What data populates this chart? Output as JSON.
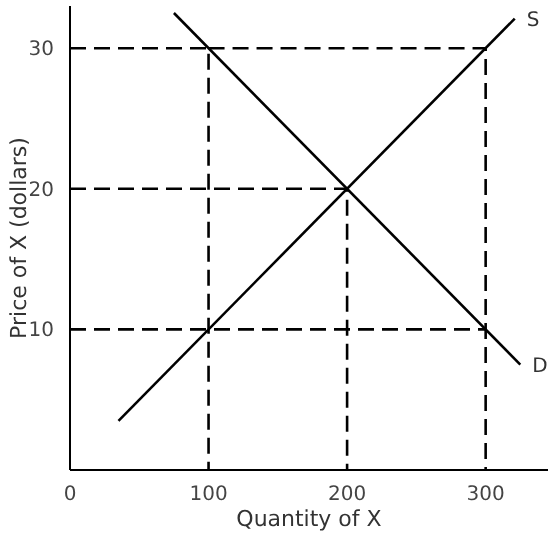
{
  "chart_data": {
    "type": "line",
    "xlabel": "Quantity of X",
    "ylabel": "Price of X (dollars)",
    "xlim": [
      0,
      345
    ],
    "ylim": [
      0,
      33
    ],
    "xticks": [
      0,
      100,
      200,
      300
    ],
    "yticks": [
      10,
      20,
      30
    ],
    "grid": false,
    "legend": false,
    "marker": "none",
    "series": [
      {
        "name": "S",
        "color": "#000000",
        "x": [
          35,
          321
        ],
        "values": [
          3.5,
          32.1
        ]
      },
      {
        "name": "D",
        "color": "#000000",
        "x": [
          75,
          325
        ],
        "values": [
          32.5,
          7.5
        ]
      },
      {
        "color": "#000000",
        "line_style": "dashed",
        "x": [
          0,
          100,
          100
        ],
        "values": [
          30,
          30,
          0
        ]
      },
      {
        "color": "#000000",
        "line_style": "dashed",
        "x": [
          100,
          300,
          300
        ],
        "values": [
          30,
          30,
          0
        ]
      },
      {
        "color": "#000000",
        "line_style": "dashed",
        "x": [
          0,
          200,
          200
        ],
        "values": [
          20,
          20,
          0
        ]
      },
      {
        "color": "#000000",
        "line_style": "dashed",
        "x": [
          0,
          300
        ],
        "values": [
          10,
          10
        ]
      }
    ]
  }
}
